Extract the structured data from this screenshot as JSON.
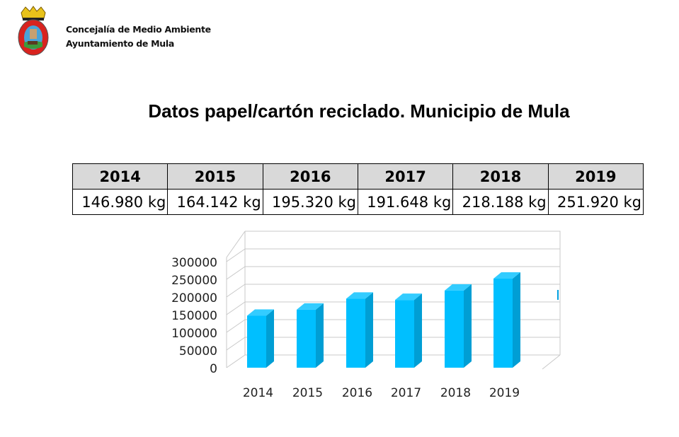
{
  "header": {
    "org_line1": "Concejalía de Medio Ambiente",
    "org_line2": "Ayuntamiento de Mula",
    "logo": "Escudo de Mula"
  },
  "title": "Datos papel/cartón reciclado. Municipio de Mula",
  "table": {
    "years": [
      "2014",
      "2015",
      "2016",
      "2017",
      "2018",
      "2019"
    ],
    "values": [
      "146.980 kg",
      "164.142 kg",
      "195.320 kg",
      "191.648 kg",
      "218.188 kg",
      "251.920 kg"
    ]
  },
  "chart_data": {
    "type": "bar",
    "title": "",
    "categories": [
      "2014",
      "2015",
      "2016",
      "2017",
      "2018",
      "2019"
    ],
    "values": [
      146980,
      164142,
      195320,
      191648,
      218188,
      251920
    ],
    "yticks": [
      "0",
      "50000",
      "100000",
      "150000",
      "200000",
      "250000",
      "300000"
    ],
    "ylim": [
      0,
      300000
    ],
    "xlabel": "",
    "ylabel": "",
    "grid": true,
    "style": "3d-column",
    "colors": {
      "front": "#00bfff",
      "side": "#009ed4",
      "top": "#33ccff"
    }
  }
}
